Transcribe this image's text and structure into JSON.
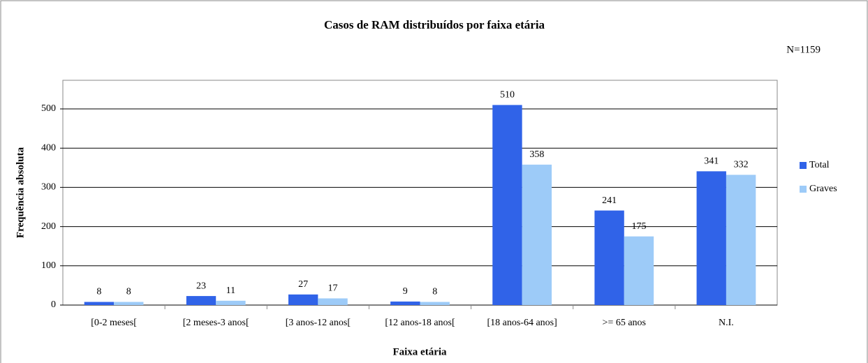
{
  "chart_data": {
    "type": "bar",
    "title": "Casos de RAM distribuídos por faixa etária",
    "annotation": "N=1159",
    "x_label": "Faixa etária",
    "y_label": "Frequência absoluta",
    "categories": [
      "[0-2 meses[",
      "[2 meses-3 anos[",
      "[3 anos-12 anos[",
      "[12 anos-18 anos[",
      "[18 anos-64 anos]",
      ">= 65 anos",
      "N.I."
    ],
    "series": [
      {
        "name": "Total",
        "color": "#3063e8",
        "values": [
          8,
          23,
          27,
          9,
          510,
          241,
          341
        ]
      },
      {
        "name": "Graves",
        "color": "#9dcbf8",
        "values": [
          8,
          11,
          17,
          8,
          358,
          175,
          332
        ]
      }
    ],
    "ylim": [
      0,
      573
    ],
    "yticks": [
      0,
      100,
      200,
      300,
      400,
      500
    ],
    "grid": true,
    "legend": "right"
  }
}
